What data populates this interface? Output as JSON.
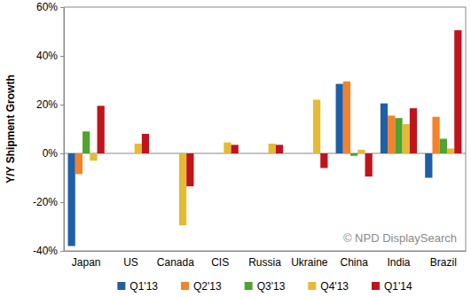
{
  "chart_data": {
    "type": "bar",
    "y_label": "Y/Y Shipment Growth",
    "annotations": [
      "© NPD DisplaySearch"
    ],
    "categories": [
      "Japan",
      "US",
      "Canada",
      "CIS",
      "Russia",
      "Ukraine",
      "China",
      "India",
      "Brazil"
    ],
    "series": [
      {
        "name": "Q1'13",
        "color": "#1f5fa8",
        "values": [
          -38,
          null,
          null,
          null,
          null,
          null,
          28.5,
          20.5,
          -10
        ]
      },
      {
        "name": "Q2'13",
        "color": "#f5822a",
        "values": [
          -8.5,
          null,
          null,
          null,
          null,
          null,
          29.5,
          15.5,
          15
        ]
      },
      {
        "name": "Q3'13",
        "color": "#4ea331",
        "values": [
          9,
          null,
          null,
          null,
          null,
          null,
          -1,
          14.5,
          6
        ]
      },
      {
        "name": "Q4'13",
        "color": "#e6bb33",
        "values": [
          -3,
          4,
          -29.5,
          4.5,
          4,
          22,
          1.5,
          12,
          2
        ]
      },
      {
        "name": "Q1'14",
        "color": "#c0141c",
        "values": [
          19.5,
          8,
          -13.5,
          3.5,
          3.5,
          -6,
          -9.5,
          18.5,
          50.5
        ]
      }
    ],
    "ylim": [
      -40,
      60
    ],
    "yticks": [
      {
        "value": -40,
        "label": "-40%"
      },
      {
        "value": -20,
        "label": "-20%"
      },
      {
        "value": 0,
        "label": "0%"
      },
      {
        "value": 20,
        "label": "20%"
      },
      {
        "value": 40,
        "label": "40%"
      },
      {
        "value": 60,
        "label": "60%"
      }
    ],
    "grid": false,
    "legend": "bottom"
  }
}
